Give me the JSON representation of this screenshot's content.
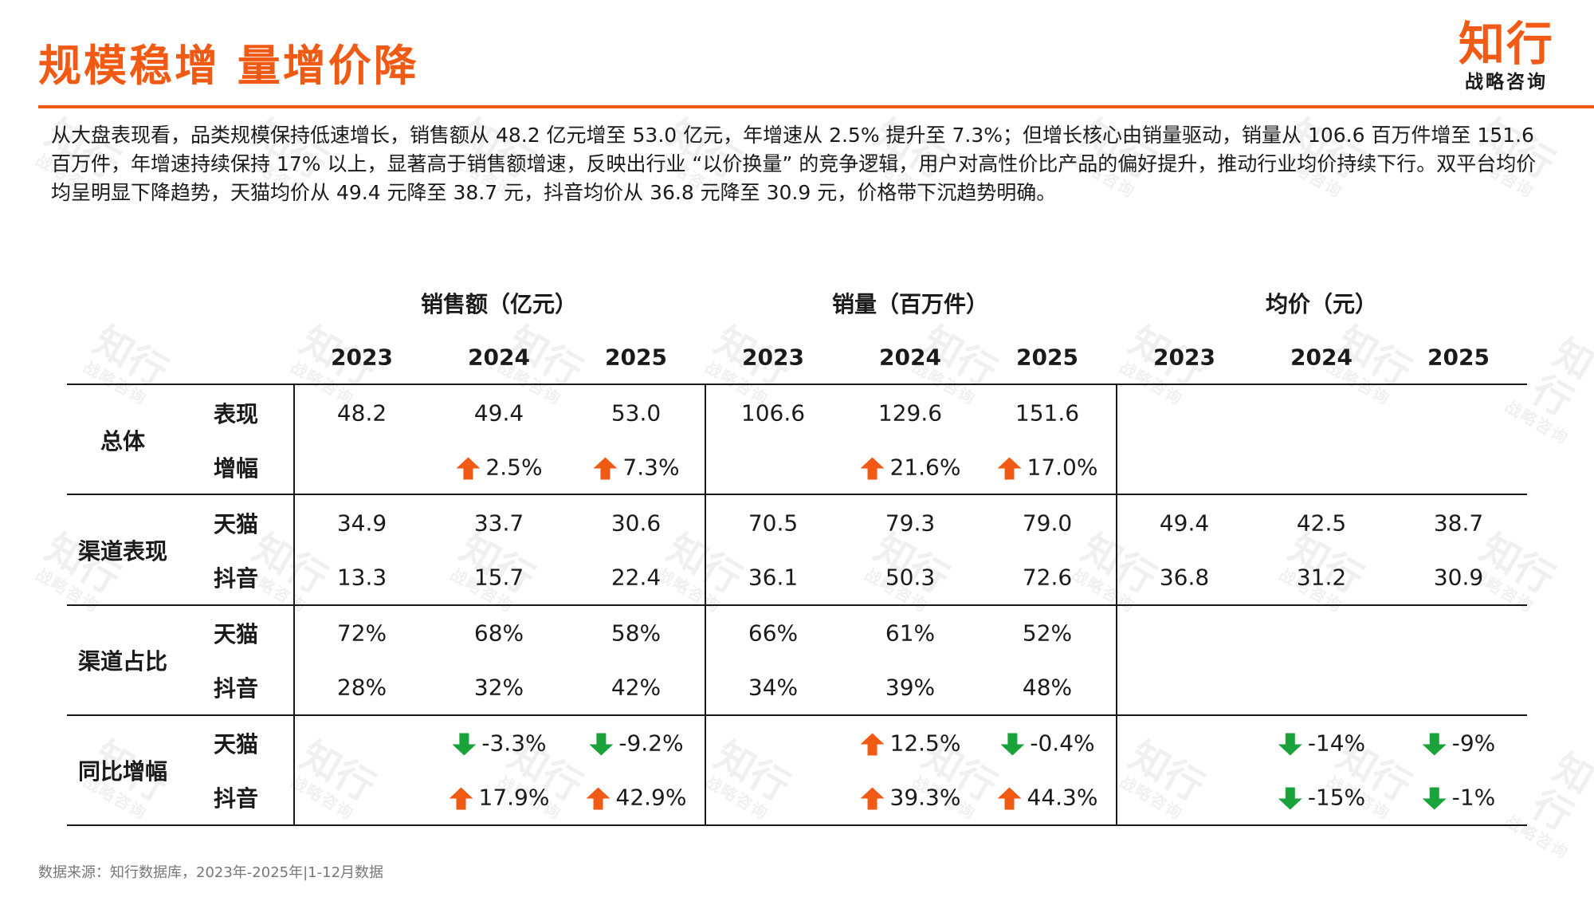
{
  "header": {
    "title": "规模稳增  量增价降",
    "logo_main": "知行",
    "logo_sub": "战略咨询"
  },
  "summary": "从大盘表现看，品类规模保持低速增长，销售额从 48.2 亿元增至 53.0 亿元，年增速从 2.5% 提升至 7.3%；但增长核心由销量驱动，销量从 106.6 百万件增至 151.6 百万件，年增速持续保持 17% 以上，显著高于销售额增速，反映出行业 “以价换量” 的竞争逻辑，用户对高性价比产品的偏好提升，推动行业均价持续下行。双平台均价均呈明显下降趋势，天猫均价从 49.4 元降至 38.7 元，抖音均价从 36.8 元降至 30.9 元，价格带下沉趋势明确。",
  "watermark": {
    "main": "知行",
    "sub": "战略咨询"
  },
  "colors": {
    "accent": "#f05a14",
    "up": "#f05a14",
    "down": "#1aa33b"
  },
  "table": {
    "groups": [
      "销售额（亿元）",
      "销量（百万件）",
      "均价（元）"
    ],
    "years": [
      "2023",
      "2024",
      "2025"
    ],
    "sections": [
      {
        "label": "总体",
        "rows": [
          {
            "label": "表现",
            "cells": [
              {
                "text": "48.2"
              },
              {
                "text": "49.4"
              },
              {
                "text": "53.0"
              },
              {
                "text": "106.6"
              },
              {
                "text": "129.6"
              },
              {
                "text": "151.6"
              },
              {
                "text": ""
              },
              {
                "text": ""
              },
              {
                "text": ""
              }
            ]
          },
          {
            "label": "增幅",
            "cells": [
              {
                "text": ""
              },
              {
                "text": "2.5%",
                "arrow": "up"
              },
              {
                "text": "7.3%",
                "arrow": "up"
              },
              {
                "text": ""
              },
              {
                "text": "21.6%",
                "arrow": "up"
              },
              {
                "text": "17.0%",
                "arrow": "up"
              },
              {
                "text": ""
              },
              {
                "text": ""
              },
              {
                "text": ""
              }
            ]
          }
        ]
      },
      {
        "label": "渠道表现",
        "rows": [
          {
            "label": "天猫",
            "cells": [
              {
                "text": "34.9"
              },
              {
                "text": "33.7"
              },
              {
                "text": "30.6"
              },
              {
                "text": "70.5"
              },
              {
                "text": "79.3"
              },
              {
                "text": "79.0"
              },
              {
                "text": "49.4"
              },
              {
                "text": "42.5"
              },
              {
                "text": "38.7"
              }
            ]
          },
          {
            "label": "抖音",
            "cells": [
              {
                "text": "13.3"
              },
              {
                "text": "15.7"
              },
              {
                "text": "22.4"
              },
              {
                "text": "36.1"
              },
              {
                "text": "50.3"
              },
              {
                "text": "72.6"
              },
              {
                "text": "36.8"
              },
              {
                "text": "31.2"
              },
              {
                "text": "30.9"
              }
            ]
          }
        ]
      },
      {
        "label": "渠道占比",
        "rows": [
          {
            "label": "天猫",
            "cells": [
              {
                "text": "72%"
              },
              {
                "text": "68%"
              },
              {
                "text": "58%"
              },
              {
                "text": "66%"
              },
              {
                "text": "61%"
              },
              {
                "text": "52%"
              },
              {
                "text": ""
              },
              {
                "text": ""
              },
              {
                "text": ""
              }
            ]
          },
          {
            "label": "抖音",
            "cells": [
              {
                "text": "28%"
              },
              {
                "text": "32%"
              },
              {
                "text": "42%"
              },
              {
                "text": "34%"
              },
              {
                "text": "39%"
              },
              {
                "text": "48%"
              },
              {
                "text": ""
              },
              {
                "text": ""
              },
              {
                "text": ""
              }
            ]
          }
        ]
      },
      {
        "label": "同比增幅",
        "rows": [
          {
            "label": "天猫",
            "cells": [
              {
                "text": ""
              },
              {
                "text": "-3.3%",
                "arrow": "down"
              },
              {
                "text": "-9.2%",
                "arrow": "down"
              },
              {
                "text": ""
              },
              {
                "text": "12.5%",
                "arrow": "up"
              },
              {
                "text": "-0.4%",
                "arrow": "down"
              },
              {
                "text": ""
              },
              {
                "text": "-14%",
                "arrow": "down"
              },
              {
                "text": "-9%",
                "arrow": "down"
              }
            ]
          },
          {
            "label": "抖音",
            "cells": [
              {
                "text": ""
              },
              {
                "text": "17.9%",
                "arrow": "up"
              },
              {
                "text": "42.9%",
                "arrow": "up"
              },
              {
                "text": ""
              },
              {
                "text": "39.3%",
                "arrow": "up"
              },
              {
                "text": "44.3%",
                "arrow": "up"
              },
              {
                "text": ""
              },
              {
                "text": "-15%",
                "arrow": "down"
              },
              {
                "text": "-1%",
                "arrow": "down"
              }
            ]
          }
        ]
      }
    ]
  },
  "source": "数据来源：知行数据库，2023年-2025年|1-12月数据"
}
